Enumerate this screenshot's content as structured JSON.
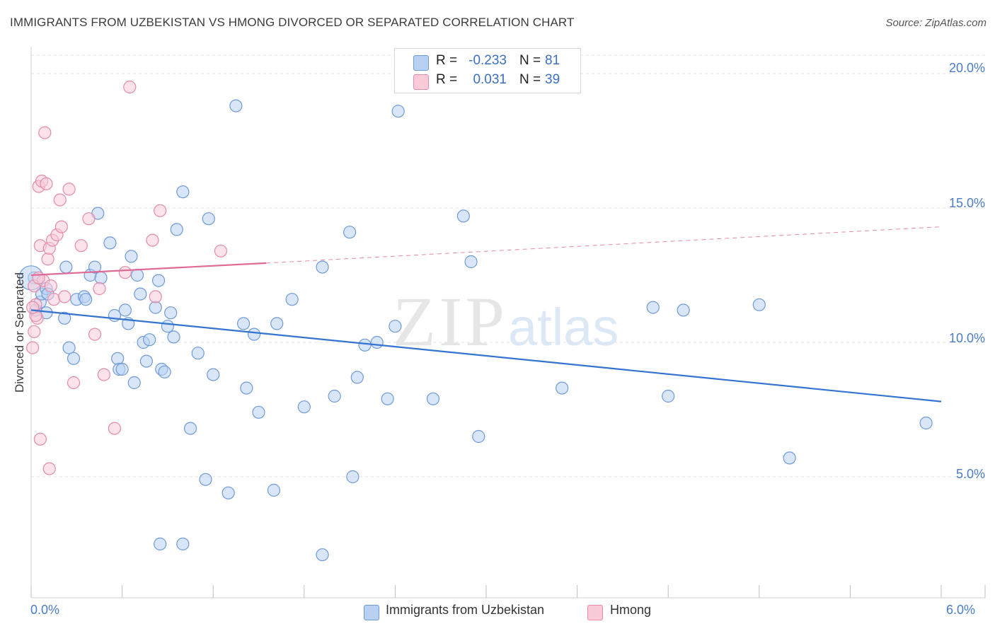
{
  "title": "IMMIGRANTS FROM UZBEKISTAN VS HMONG DIVORCED OR SEPARATED CORRELATION CHART",
  "source": "Source: ZipAtlas.com",
  "watermark": {
    "zip": "ZIP",
    "atlas": "atlas"
  },
  "legend_top": {
    "rows": [
      {
        "r_label": "R =",
        "r_value": "-0.233",
        "n_label": "N =",
        "n_value": "81",
        "color": "#a9c7f0",
        "border": "#6f9ad8"
      },
      {
        "r_label": "R =",
        "r_value": "0.031",
        "n_label": "N =",
        "n_value": "39",
        "color": "#f7bfd0",
        "border": "#e58aa8"
      }
    ]
  },
  "legend_bottom": {
    "items": [
      {
        "label": "Immigrants from Uzbekistan",
        "color": "#b8d1f3",
        "border": "#6f9ad8"
      },
      {
        "label": "Hmong",
        "color": "#f9cad8",
        "border": "#e58aa8"
      }
    ]
  },
  "chart_data": {
    "type": "scatter",
    "title": "IMMIGRANTS FROM UZBEKISTAN VS HMONG DIVORCED OR SEPARATED CORRELATION CHART",
    "xlabel": "",
    "ylabel": "Divorced or Separated",
    "xlim": [
      0,
      6
    ],
    "ylim": [
      0.5,
      21
    ],
    "x_tick_labels": [
      "0.0%",
      "6.0%"
    ],
    "y_ticks": [
      5,
      10,
      15,
      20
    ],
    "y_tick_labels": [
      "5.0%",
      "10.0%",
      "15.0%",
      "20.0%"
    ],
    "grid": true,
    "legend_placement": "top-center",
    "series": [
      {
        "name": "Immigrants from Uzbekistan",
        "color": "#6f9ad8",
        "fill": "#b8d1f3",
        "trend": {
          "x": [
            0.0,
            6.0
          ],
          "y": [
            11.2,
            7.8
          ],
          "color": "#3374d1"
        },
        "points": [
          [
            0.02,
            12.4
          ],
          [
            0.03,
            11.2
          ],
          [
            0.06,
            11.5
          ],
          [
            0.07,
            11.8
          ],
          [
            0.1,
            12.0
          ],
          [
            0.11,
            11.8
          ],
          [
            0.1,
            11.1
          ],
          [
            0.23,
            12.8
          ],
          [
            0.3,
            11.6
          ],
          [
            0.25,
            9.8
          ],
          [
            0.22,
            10.9
          ],
          [
            0.28,
            9.4
          ],
          [
            0.35,
            11.7
          ],
          [
            0.36,
            11.6
          ],
          [
            0.39,
            12.5
          ],
          [
            0.42,
            12.8
          ],
          [
            0.44,
            14.8
          ],
          [
            0.46,
            12.4
          ],
          [
            0.52,
            13.7
          ],
          [
            0.55,
            11.0
          ],
          [
            0.57,
            9.4
          ],
          [
            0.58,
            9.0
          ],
          [
            0.6,
            9.0
          ],
          [
            0.62,
            11.2
          ],
          [
            0.64,
            10.7
          ],
          [
            0.66,
            13.2
          ],
          [
            0.68,
            8.5
          ],
          [
            0.7,
            12.5
          ],
          [
            0.72,
            11.8
          ],
          [
            0.74,
            10.0
          ],
          [
            0.76,
            9.3
          ],
          [
            0.78,
            10.1
          ],
          [
            0.82,
            11.3
          ],
          [
            0.84,
            12.3
          ],
          [
            0.86,
            9.0
          ],
          [
            0.88,
            8.9
          ],
          [
            0.9,
            10.6
          ],
          [
            0.92,
            11.1
          ],
          [
            0.94,
            10.2
          ],
          [
            0.96,
            14.2
          ],
          [
            1.0,
            15.6
          ],
          [
            1.05,
            6.8
          ],
          [
            1.1,
            9.6
          ],
          [
            1.15,
            4.9
          ],
          [
            1.17,
            14.6
          ],
          [
            1.2,
            8.8
          ],
          [
            1.3,
            4.4
          ],
          [
            1.35,
            18.8
          ],
          [
            1.4,
            10.7
          ],
          [
            1.42,
            8.3
          ],
          [
            1.47,
            10.3
          ],
          [
            1.5,
            7.4
          ],
          [
            1.6,
            4.5
          ],
          [
            1.62,
            10.7
          ],
          [
            1.72,
            11.6
          ],
          [
            1.8,
            7.6
          ],
          [
            1.92,
            12.8
          ],
          [
            1.92,
            2.1
          ],
          [
            2.0,
            8.0
          ],
          [
            2.1,
            14.1
          ],
          [
            2.12,
            5.0
          ],
          [
            2.15,
            8.7
          ],
          [
            2.2,
            9.9
          ],
          [
            2.28,
            10.0
          ],
          [
            2.35,
            7.9
          ],
          [
            2.4,
            10.6
          ],
          [
            2.42,
            18.6
          ],
          [
            2.65,
            7.9
          ],
          [
            2.85,
            14.7
          ],
          [
            2.9,
            13.0
          ],
          [
            2.95,
            6.5
          ],
          [
            3.5,
            8.3
          ],
          [
            4.1,
            11.3
          ],
          [
            4.2,
            8.0
          ],
          [
            4.3,
            11.2
          ],
          [
            4.8,
            11.4
          ],
          [
            5.0,
            5.7
          ],
          [
            5.9,
            7.0
          ],
          [
            1.0,
            2.5
          ],
          [
            0.85,
            2.5
          ],
          [
            0.0,
            12.4
          ]
        ]
      },
      {
        "name": "Hmong",
        "color": "#e58aa8",
        "fill": "#f9cad8",
        "trend": {
          "x": [
            0.0,
            1.55
          ],
          "y": [
            12.5,
            12.95
          ],
          "dashed_to": [
            6.0,
            14.3
          ],
          "color": "#e06a95"
        },
        "points": [
          [
            0.02,
            12.1
          ],
          [
            0.03,
            11.4
          ],
          [
            0.04,
            10.9
          ],
          [
            0.05,
            15.8
          ],
          [
            0.06,
            13.6
          ],
          [
            0.07,
            16.0
          ],
          [
            0.08,
            12.3
          ],
          [
            0.09,
            17.8
          ],
          [
            0.1,
            15.9
          ],
          [
            0.11,
            13.1
          ],
          [
            0.12,
            13.5
          ],
          [
            0.13,
            12.1
          ],
          [
            0.14,
            13.8
          ],
          [
            0.15,
            11.6
          ],
          [
            0.17,
            14.0
          ],
          [
            0.19,
            15.3
          ],
          [
            0.2,
            14.3
          ],
          [
            0.22,
            11.7
          ],
          [
            0.25,
            15.7
          ],
          [
            0.28,
            8.5
          ],
          [
            0.33,
            13.6
          ],
          [
            0.38,
            14.6
          ],
          [
            0.42,
            10.3
          ],
          [
            0.45,
            12.0
          ],
          [
            0.48,
            8.8
          ],
          [
            0.55,
            6.8
          ],
          [
            0.62,
            12.6
          ],
          [
            0.65,
            19.5
          ],
          [
            0.8,
            13.8
          ],
          [
            0.82,
            11.7
          ],
          [
            0.85,
            14.9
          ],
          [
            1.25,
            13.4
          ],
          [
            0.01,
            9.8
          ],
          [
            0.02,
            10.4
          ],
          [
            0.06,
            6.4
          ],
          [
            0.12,
            5.3
          ],
          [
            0.03,
            11.0
          ],
          [
            0.05,
            12.4
          ],
          [
            0.01,
            11.3
          ]
        ]
      }
    ]
  }
}
